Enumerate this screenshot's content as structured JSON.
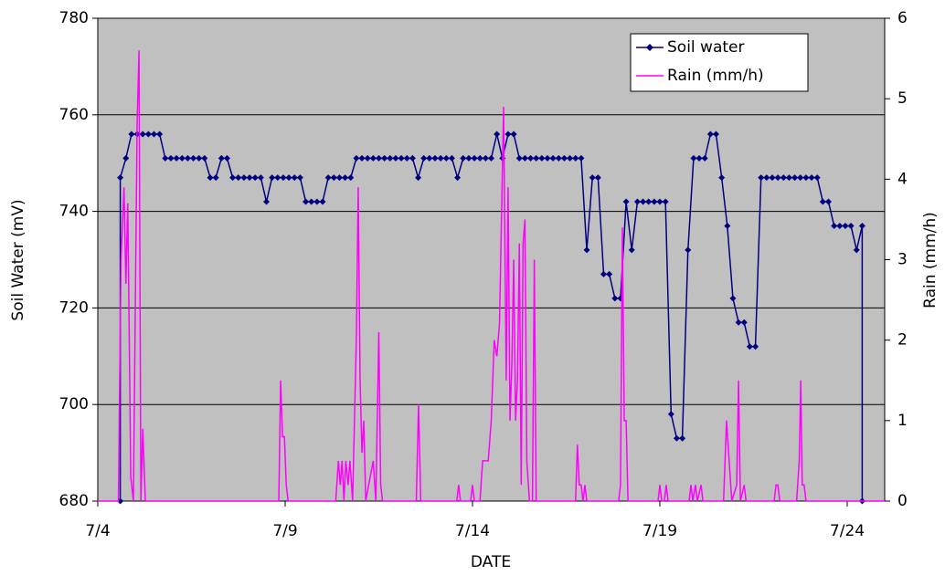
{
  "chart_data": {
    "type": "line",
    "x_label": "DATE",
    "y_label": "Soil Water (mV)",
    "y2_label": "Rain (mm/h)",
    "xlim": [
      4,
      25
    ],
    "xticks": [
      {
        "value": 4,
        "label": "7/4"
      },
      {
        "value": 9,
        "label": "7/9"
      },
      {
        "value": 14,
        "label": "7/14"
      },
      {
        "value": 19,
        "label": "7/19"
      },
      {
        "value": 24,
        "label": "7/24"
      }
    ],
    "ylim": [
      680,
      780
    ],
    "yticks": [
      680,
      700,
      720,
      740,
      760,
      780
    ],
    "y2lim": [
      0,
      6
    ],
    "y2ticks": [
      0,
      1,
      2,
      3,
      4,
      5,
      6
    ],
    "grid": true,
    "legend": "upper right",
    "background": "#c0c0c0",
    "series": [
      {
        "name": "Soil water",
        "color": "#000080",
        "marker": "diamond",
        "x": [
          4.6,
          4.6,
          4.75,
          4.9,
          5.05,
          5.2,
          5.35,
          5.5,
          5.65,
          5.8,
          5.95,
          6.1,
          6.25,
          6.4,
          6.55,
          6.7,
          6.85,
          7,
          7.15,
          7.3,
          7.45,
          7.6,
          7.75,
          7.9,
          8.05,
          8.2,
          8.35,
          8.5,
          8.65,
          8.8,
          8.95,
          9.1,
          9.25,
          9.4,
          9.55,
          9.7,
          9.85,
          10,
          10.15,
          10.3,
          10.45,
          10.6,
          10.75,
          10.9,
          11.05,
          11.2,
          11.35,
          11.5,
          11.65,
          11.8,
          11.95,
          12.1,
          12.25,
          12.4,
          12.55,
          12.7,
          12.85,
          13,
          13.15,
          13.3,
          13.45,
          13.6,
          13.75,
          13.9,
          14.05,
          14.2,
          14.35,
          14.5,
          14.65,
          14.8,
          14.95,
          15.1,
          15.25,
          15.4,
          15.55,
          15.7,
          15.85,
          16,
          16.15,
          16.3,
          16.45,
          16.6,
          16.75,
          16.9,
          17.05,
          17.2,
          17.35,
          17.5,
          17.65,
          17.8,
          17.95,
          18.1,
          18.25,
          18.4,
          18.55,
          18.7,
          18.85,
          19,
          19.15,
          19.3,
          19.45,
          19.6,
          19.75,
          19.9,
          20.05,
          20.2,
          20.35,
          20.5,
          20.65,
          20.8,
          20.95,
          21.1,
          21.25,
          21.4,
          21.55,
          21.7,
          21.85,
          22,
          22.15,
          22.3,
          22.45,
          22.6,
          22.75,
          22.9,
          23.05,
          23.2,
          23.35,
          23.5,
          23.65,
          23.8,
          23.95,
          24.1,
          24.25,
          24.4,
          24.4
        ],
        "values": [
          680,
          747,
          751,
          756,
          756,
          756,
          756,
          756,
          756,
          751,
          751,
          751,
          751,
          751,
          751,
          751,
          751,
          747,
          747,
          751,
          751,
          747,
          747,
          747,
          747,
          747,
          747,
          742,
          747,
          747,
          747,
          747,
          747,
          747,
          742,
          742,
          742,
          742,
          747,
          747,
          747,
          747,
          747,
          751,
          751,
          751,
          751,
          751,
          751,
          751,
          751,
          751,
          751,
          751,
          747,
          751,
          751,
          751,
          751,
          751,
          751,
          747,
          751,
          751,
          751,
          751,
          751,
          751,
          756,
          751,
          756,
          756,
          751,
          751,
          751,
          751,
          751,
          751,
          751,
          751,
          751,
          751,
          751,
          751,
          732,
          747,
          747,
          727,
          727,
          722,
          722,
          742,
          732,
          742,
          742,
          742,
          742,
          742,
          742,
          698,
          693,
          693,
          732,
          751,
          751,
          751,
          756,
          756,
          747,
          737,
          722,
          717,
          717,
          712,
          712,
          747,
          747,
          747,
          747,
          747,
          747,
          747,
          747,
          747,
          747,
          747,
          742,
          742,
          737,
          737,
          737,
          737,
          732,
          737,
          680
        ]
      },
      {
        "name": "Rain (mm/h)",
        "color": "#ff00ff",
        "axis": "y2",
        "x": [
          4,
          4.55,
          4.62,
          4.7,
          4.75,
          4.8,
          4.88,
          4.95,
          5.05,
          5.1,
          5.15,
          5.2,
          5.27,
          8.83,
          8.88,
          8.93,
          8.98,
          9.03,
          9.08,
          10.35,
          10.42,
          10.47,
          10.52,
          10.57,
          10.62,
          10.68,
          10.73,
          10.8,
          10.9,
          10.95,
          11.0,
          11.05,
          11.1,
          11.15,
          11.35,
          11.42,
          11.5,
          11.55,
          11.6,
          12.5,
          12.56,
          12.62,
          13.58,
          13.63,
          13.68,
          13.95,
          14.0,
          14.05,
          14.2,
          14.27,
          14.35,
          14.42,
          14.5,
          14.58,
          14.65,
          14.72,
          14.83,
          14.9,
          14.95,
          15.0,
          15.05,
          15.1,
          15.15,
          15.2,
          15.25,
          15.3,
          15.35,
          15.4,
          15.45,
          15.52,
          15.6,
          15.65,
          15.7,
          16.75,
          16.8,
          16.85,
          16.9,
          16.95,
          17.0,
          17.05,
          17.9,
          17.95,
          18.0,
          18.05,
          18.1,
          18.15,
          18.95,
          19.0,
          19.05,
          19.12,
          19.17,
          19.22,
          19.78,
          19.83,
          19.88,
          19.95,
          20.0,
          20.1,
          20.15,
          20.7,
          20.78,
          20.85,
          20.92,
          21.05,
          21.1,
          21.15,
          21.25,
          21.3,
          22.05,
          22.1,
          22.15,
          22.2,
          22.65,
          22.72,
          22.76,
          22.8,
          22.85,
          22.9,
          25
        ],
        "values": [
          0,
          0,
          3.0,
          3.9,
          2.7,
          3.7,
          0.3,
          0,
          4.7,
          5.6,
          0,
          0.9,
          0,
          0,
          1.5,
          0.8,
          0.8,
          0.2,
          0,
          0,
          0.5,
          0.2,
          0.5,
          0,
          0.5,
          0.2,
          0.5,
          0,
          2.0,
          3.9,
          1.5,
          0.6,
          1.0,
          0,
          0.5,
          0,
          2.1,
          0.2,
          0,
          0,
          1.2,
          0,
          0,
          0.2,
          0,
          0,
          0.2,
          0,
          0,
          0.5,
          0.5,
          0.5,
          1.0,
          2.0,
          1.8,
          2.2,
          4.9,
          1.5,
          3.9,
          1.0,
          1.7,
          3.0,
          1.0,
          1.5,
          3.2,
          0.2,
          3.2,
          3.5,
          0.5,
          0,
          0,
          3.0,
          0,
          0,
          0.7,
          0.2,
          0.2,
          0,
          0.2,
          0,
          0,
          0.2,
          3.4,
          1.0,
          1.0,
          0,
          0,
          0.2,
          0,
          0,
          0.2,
          0,
          0,
          0.2,
          0,
          0.2,
          0,
          0.2,
          0,
          0,
          1.0,
          0.5,
          0,
          0.2,
          1.5,
          0,
          0.2,
          0,
          0,
          0.2,
          0.2,
          0,
          0,
          0.5,
          1.5,
          0.2,
          0.2,
          0,
          0
        ]
      }
    ]
  }
}
